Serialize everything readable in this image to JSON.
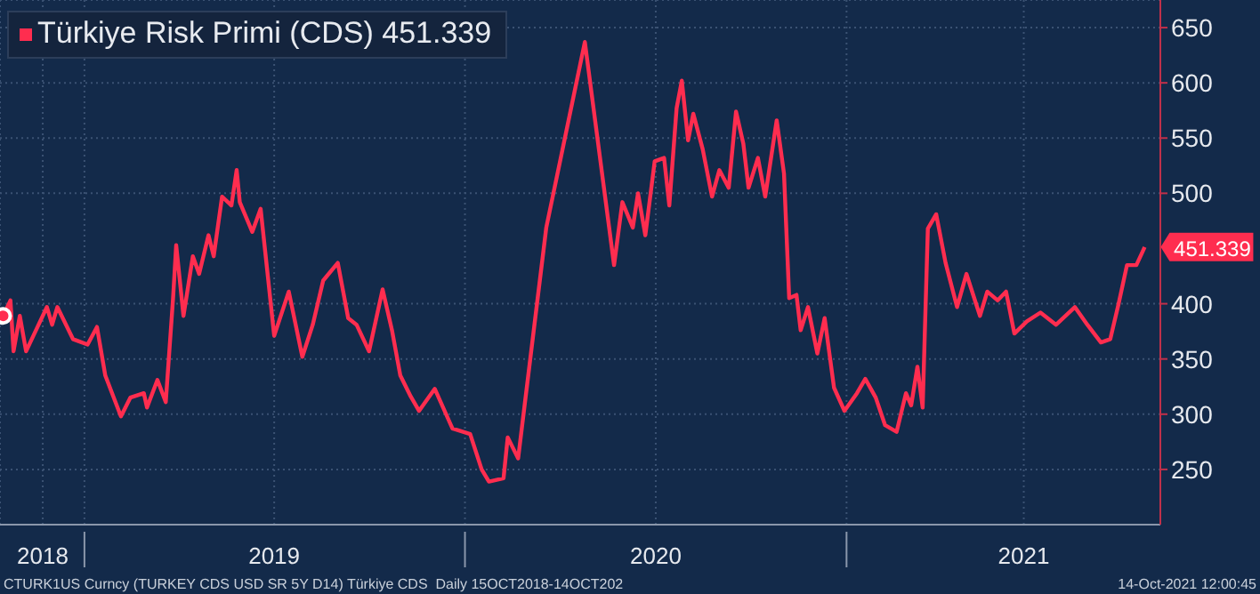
{
  "chart_data": {
    "type": "line",
    "legend": "top left",
    "grid": true,
    "x": [
      "2018-10-15",
      "2018-10-22",
      "2018-10-25",
      "2018-10-31",
      "2018-11-06",
      "2018-11-13",
      "2018-11-26",
      "2018-12-01",
      "2018-12-06",
      "2018-12-21",
      "2019-01-04",
      "2019-01-13",
      "2019-01-21",
      "2019-02-05",
      "2019-02-14",
      "2019-02-27",
      "2019-03-02",
      "2019-03-12",
      "2019-03-20",
      "2019-03-27",
      "2019-03-30",
      "2019-04-06",
      "2019-04-15",
      "2019-04-21",
      "2019-04-30",
      "2019-05-05",
      "2019-05-13",
      "2019-05-22",
      "2019-05-27",
      "2019-05-30",
      "2019-06-11",
      "2019-06-19",
      "2019-07-02",
      "2019-07-16",
      "2019-07-29",
      "2019-08-08",
      "2019-08-18",
      "2019-09-01",
      "2019-09-11",
      "2019-09-19",
      "2019-10-01",
      "2019-10-14",
      "2019-10-23",
      "2019-10-31",
      "2019-11-10",
      "2019-11-18",
      "2019-12-03",
      "2019-12-20",
      "2020-01-06",
      "2020-01-17",
      "2020-01-24",
      "2020-02-07",
      "2020-02-11",
      "2020-02-21",
      "2020-03-19",
      "2020-04-25",
      "2020-05-23",
      "2020-05-31",
      "2020-06-10",
      "2020-06-15",
      "2020-06-22",
      "2020-07-01",
      "2020-07-10",
      "2020-07-15",
      "2020-07-22",
      "2020-07-27",
      "2020-08-02",
      "2020-08-07",
      "2020-08-16",
      "2020-08-25",
      "2020-09-01",
      "2020-09-10",
      "2020-09-17",
      "2020-09-24",
      "2020-09-29",
      "2020-10-08",
      "2020-10-15",
      "2020-10-26",
      "2020-11-02",
      "2020-11-07",
      "2020-11-14",
      "2020-11-18",
      "2020-11-25",
      "2020-12-04",
      "2020-12-11",
      "2020-12-20",
      "2020-12-30",
      "2021-01-11",
      "2021-01-19",
      "2021-01-29",
      "2021-02-07",
      "2021-02-18",
      "2021-02-27",
      "2021-03-04",
      "2021-03-10",
      "2021-03-15",
      "2021-03-20",
      "2021-03-28",
      "2021-04-06",
      "2021-04-17",
      "2021-04-26",
      "2021-05-09",
      "2021-05-16",
      "2021-05-26",
      "2021-06-03",
      "2021-06-11",
      "2021-06-23",
      "2021-07-06",
      "2021-07-21",
      "2021-08-08",
      "2021-08-20",
      "2021-09-02",
      "2021-09-11",
      "2021-09-19",
      "2021-09-27",
      "2021-10-06",
      "2021-10-14"
    ],
    "series": [
      {
        "name": "Türkiye Risk Primi (CDS)",
        "color": "#ff2d4f",
        "values": [
          389,
          403,
          357,
          389,
          357,
          371,
          397,
          381,
          397,
          368,
          363,
          379,
          335,
          298,
          315,
          319,
          306,
          331,
          311,
          405,
          453,
          389,
          443,
          427,
          462,
          443,
          497,
          489,
          521,
          492,
          465,
          486,
          371,
          411,
          352,
          381,
          421,
          437,
          387,
          381,
          357,
          413,
          376,
          335,
          316,
          303,
          323,
          287,
          282,
          250,
          239,
          242,
          279,
          260,
          469,
          637,
          435,
          492,
          469,
          500,
          462,
          529,
          532,
          489,
          577,
          602,
          548,
          572,
          540,
          497,
          521,
          505,
          574,
          545,
          505,
          532,
          497,
          566,
          518,
          405,
          408,
          376,
          397,
          355,
          387,
          324,
          303,
          319,
          332,
          315,
          290,
          284,
          319,
          308,
          343,
          306,
          468,
          481,
          437,
          397,
          427,
          389,
          411,
          403,
          411,
          373,
          384,
          392,
          381,
          397,
          381,
          365,
          368,
          400,
          435,
          435,
          451.339
        ],
        "value_labels": [
          null,
          null,
          null,
          null,
          null,
          null,
          null,
          null,
          null,
          null,
          null,
          null,
          null,
          null,
          null,
          null,
          null,
          null,
          null,
          null,
          null,
          null,
          null,
          null,
          null,
          null,
          null,
          null,
          null,
          null,
          null,
          null,
          null,
          null,
          null,
          null,
          null,
          null,
          null,
          null,
          null,
          null,
          null,
          null,
          null,
          null,
          null,
          null,
          null,
          null,
          null,
          null,
          null,
          null,
          null,
          null,
          null,
          null,
          null,
          null,
          null,
          null,
          null,
          null,
          null,
          null,
          null,
          null,
          null,
          null,
          null,
          null,
          null,
          null,
          null,
          null,
          null,
          null,
          null,
          null,
          null,
          null,
          null,
          null,
          null,
          null,
          null,
          null,
          null,
          null,
          null,
          null,
          null,
          null,
          null,
          null,
          null,
          null,
          null,
          null,
          null,
          null,
          null,
          null,
          null,
          null,
          null,
          null,
          null,
          null,
          null,
          null,
          null,
          null,
          null,
          null,
          "451.339"
        ]
      }
    ],
    "xlim": [
      "2018-10-12",
      "2021-10-29"
    ],
    "xticks": [
      {
        "value": "2018-11-22",
        "label": "2018"
      },
      {
        "value": "2019-01-01",
        "label": null
      },
      {
        "value": "2019-07-02",
        "label": "2019"
      },
      {
        "value": "2020-01-01",
        "label": null
      },
      {
        "value": "2020-07-02",
        "label": "2020"
      },
      {
        "value": "2021-01-01",
        "label": null
      },
      {
        "value": "2021-06-20",
        "label": "2021"
      }
    ],
    "ylim": [
      200,
      675
    ],
    "yticks": [
      250,
      300,
      350,
      400,
      500,
      550,
      600,
      650
    ],
    "annotations": [
      "CTURK1US Curncy (TURKEY CDS USD SR 5Y D14) Türkiye CDS  Daily 15OCT2018-14OCT202",
      "14-Oct-2021 12:00:45"
    ]
  }
}
